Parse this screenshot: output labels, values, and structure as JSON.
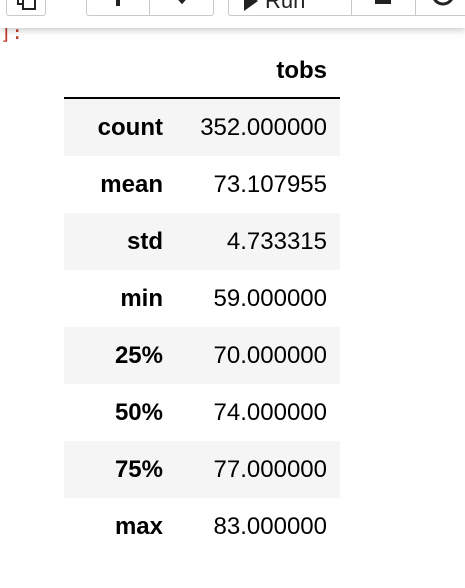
{
  "toolbar": {
    "run_label": "Run"
  },
  "cell": {
    "prompt_text": "]:"
  },
  "table": {
    "column_header": "tobs",
    "rows": [
      {
        "label": "count",
        "value": "352.000000"
      },
      {
        "label": "mean",
        "value": "73.107955"
      },
      {
        "label": "std",
        "value": "4.733315"
      },
      {
        "label": "min",
        "value": "59.000000"
      },
      {
        "label": "25%",
        "value": "70.000000"
      },
      {
        "label": "50%",
        "value": "74.000000"
      },
      {
        "label": "75%",
        "value": "77.000000"
      },
      {
        "label": "max",
        "value": "83.000000"
      }
    ]
  }
}
